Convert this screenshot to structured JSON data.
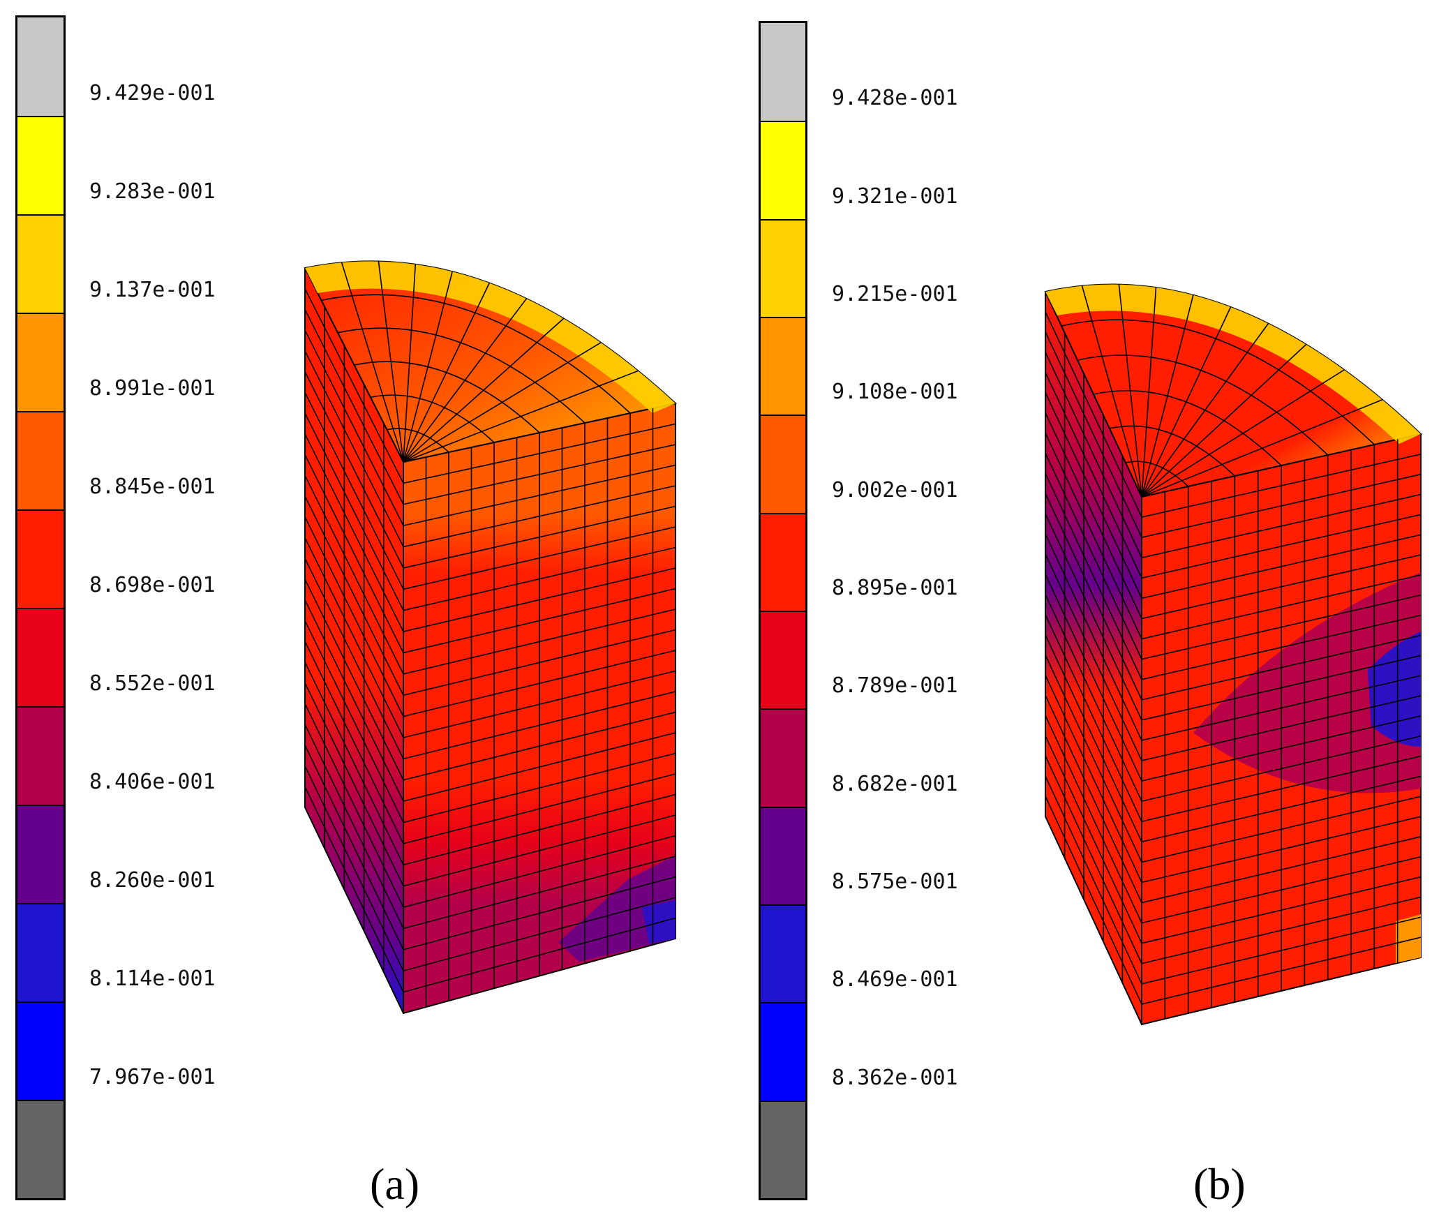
{
  "panels": [
    {
      "caption": "(a)",
      "colorbar": {
        "colors": [
          "#c8c8c8",
          "#ffff00",
          "#ffd200",
          "#ff9600",
          "#ff5a00",
          "#ff1e00",
          "#e60019",
          "#b4004b",
          "#64008c",
          "#1e14d2",
          "#0000ff",
          "#646464"
        ],
        "tick_labels": [
          "9.429e-001",
          "9.283e-001",
          "9.137e-001",
          "8.991e-001",
          "8.845e-001",
          "8.698e-001",
          "8.552e-001",
          "8.406e-001",
          "8.260e-001",
          "8.114e-001",
          "7.967e-001"
        ]
      }
    },
    {
      "caption": "(b)",
      "colorbar": {
        "colors": [
          "#c8c8c8",
          "#ffff00",
          "#ffd200",
          "#ff9600",
          "#ff5a00",
          "#ff1e00",
          "#e60019",
          "#b4004b",
          "#64008c",
          "#1e14d2",
          "#0000ff",
          "#646464"
        ],
        "tick_labels": [
          "9.428e-001",
          "9.321e-001",
          "9.215e-001",
          "9.108e-001",
          "9.002e-001",
          "8.895e-001",
          "8.789e-001",
          "8.682e-001",
          "8.575e-001",
          "8.469e-001",
          "8.362e-001"
        ]
      }
    }
  ]
}
